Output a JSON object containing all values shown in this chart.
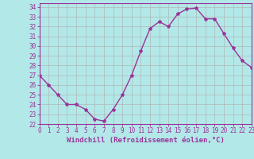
{
  "x": [
    0,
    1,
    2,
    3,
    4,
    5,
    6,
    7,
    8,
    9,
    10,
    11,
    12,
    13,
    14,
    15,
    16,
    17,
    18,
    19,
    20,
    21,
    22,
    23
  ],
  "y": [
    27,
    26,
    25,
    24,
    24,
    23.5,
    22.5,
    22.3,
    23.5,
    25,
    27,
    29.5,
    31.8,
    32.5,
    32,
    33.3,
    33.8,
    33.9,
    32.8,
    32.8,
    31.3,
    29.8,
    28.5,
    27.8
  ],
  "xlim": [
    0,
    23
  ],
  "ylim": [
    22,
    34.4
  ],
  "yticks": [
    22,
    23,
    24,
    25,
    26,
    27,
    28,
    29,
    30,
    31,
    32,
    33,
    34
  ],
  "xticks": [
    0,
    1,
    2,
    3,
    4,
    5,
    6,
    7,
    8,
    9,
    10,
    11,
    12,
    13,
    14,
    15,
    16,
    17,
    18,
    19,
    20,
    21,
    22,
    23
  ],
  "xlabel": "Windchill (Refroidissement éolien,°C)",
  "line_color": "#993399",
  "marker": "*",
  "bg_color": "#b3e8e8",
  "grid_color": "#b0b8b8",
  "tick_label_size": 5.5,
  "xlabel_size": 6.5,
  "spine_color": "#993399"
}
